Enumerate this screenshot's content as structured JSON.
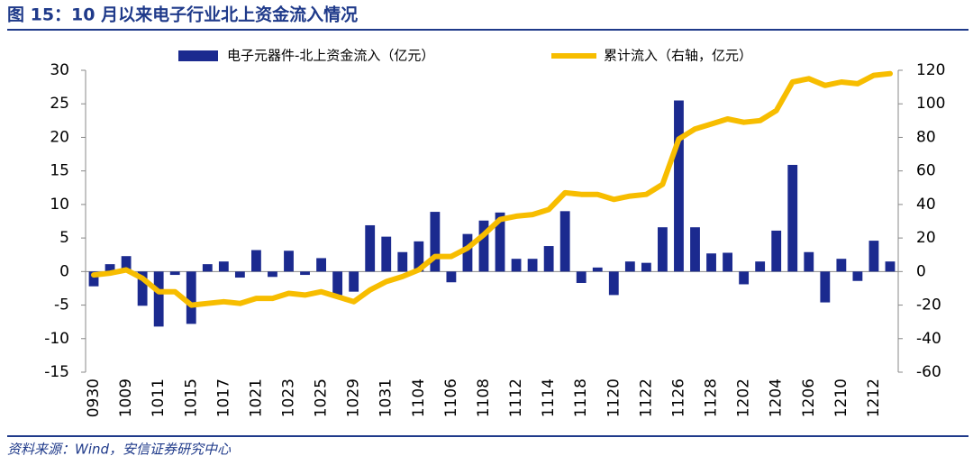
{
  "chart_data": {
    "type": "bar-line",
    "title": "图 15：10 月以来电子行业北上资金流入情况",
    "source": "资料来源：Wind，安信证券研究中心",
    "categories": [
      "0930",
      null,
      "1009",
      null,
      "1011",
      null,
      "1015",
      null,
      "1017",
      null,
      "1021",
      null,
      "1023",
      null,
      "1025",
      null,
      "1029",
      null,
      "1031",
      null,
      "1104",
      null,
      "1106",
      null,
      "1108",
      null,
      "1112",
      null,
      "1114",
      null,
      "1118",
      null,
      "1120",
      null,
      "1122",
      null,
      "1126",
      null,
      "1128",
      null,
      "1202",
      null,
      "1204",
      null,
      "1206",
      null,
      "1210",
      null,
      "1212",
      null
    ],
    "series": [
      {
        "name": "电子元器件-北上资金流入（亿元）",
        "color": "#1b2a8f",
        "type": "bar",
        "values": [
          -2.2,
          1.1,
          2.3,
          -5.1,
          -8.2,
          -0.5,
          -7.8,
          1.1,
          1.5,
          -0.9,
          3.2,
          -0.8,
          3.1,
          -0.5,
          2.0,
          -3.5,
          -3.0,
          6.9,
          5.2,
          2.9,
          4.5,
          8.9,
          -1.6,
          5.6,
          7.6,
          8.8,
          1.9,
          1.9,
          3.8,
          9.0,
          -1.7,
          0.6,
          -3.5,
          1.5,
          1.3,
          6.6,
          25.5,
          6.6,
          2.7,
          2.8,
          -1.9,
          1.5,
          6.1,
          15.9,
          2.9,
          -4.6,
          1.9,
          -1.4,
          4.6,
          1.5
        ]
      },
      {
        "name": "累计流入（右轴，亿元）",
        "color": "#f7bd00",
        "type": "line",
        "axis": "y2",
        "values": [
          -2,
          -1,
          1,
          -4,
          -12,
          -12,
          -20,
          -19,
          -18,
          -19,
          -16,
          -16,
          -13,
          -14,
          -12,
          -15,
          -18,
          -11,
          -6,
          -3,
          1,
          9,
          9,
          14,
          22,
          31,
          33,
          34,
          37,
          47,
          46,
          46,
          43,
          45,
          46,
          52,
          79,
          85,
          88,
          91,
          89,
          90,
          96,
          113,
          115,
          111,
          113,
          112,
          117,
          118
        ]
      }
    ],
    "ylim": [
      -15,
      30
    ],
    "yticks": [
      -15,
      -10,
      -5,
      0,
      5,
      10,
      15,
      20,
      25,
      30
    ],
    "y2lim": [
      -60,
      120
    ],
    "y2ticks": [
      -60,
      -40,
      -20,
      0,
      20,
      40,
      60,
      80,
      100,
      120
    ],
    "grid": false
  }
}
